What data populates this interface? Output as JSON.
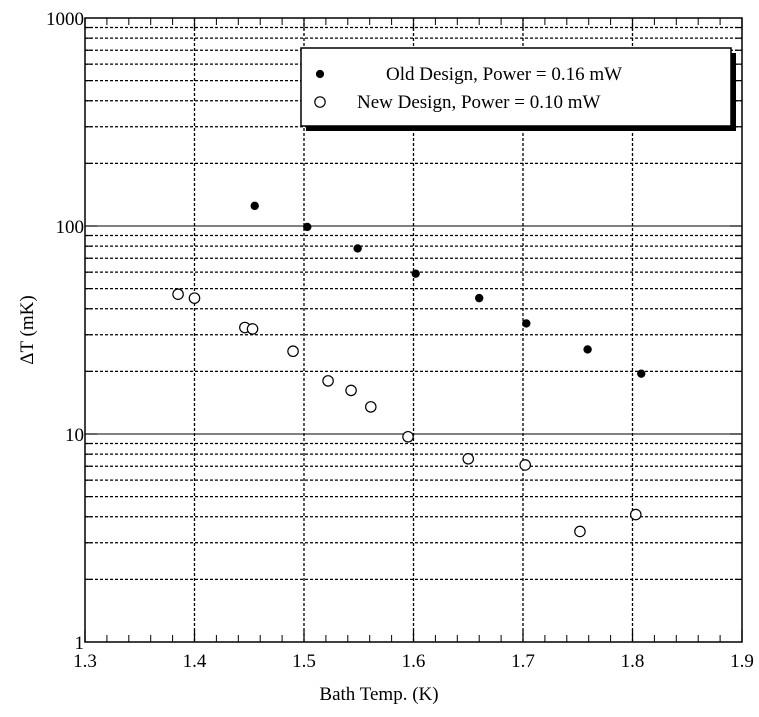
{
  "chart_data": {
    "type": "scatter",
    "xlabel": "Bath Temp. (K)",
    "ylabel": "ΔT (mK)",
    "xlim": [
      1.3,
      1.9
    ],
    "ylim": [
      1,
      1000
    ],
    "yscale": "log",
    "grid": true,
    "legend_position": "top-right",
    "x_ticks": [
      "1.3",
      "1.4",
      "1.5",
      "1.6",
      "1.7",
      "1.8",
      "1.9"
    ],
    "y_ticks": [
      "1",
      "10",
      "100",
      "1000"
    ],
    "series": [
      {
        "name": "Old Design, Power = 0.16 mW",
        "marker": "filled-circle",
        "x": [
          1.455,
          1.503,
          1.549,
          1.602,
          1.66,
          1.703,
          1.759,
          1.808
        ],
        "y": [
          125,
          99,
          78,
          59,
          45,
          34,
          25.5,
          19.5
        ]
      },
      {
        "name": "New Design, Power = 0.10 mW",
        "marker": "open-circle",
        "x": [
          1.385,
          1.4,
          1.446,
          1.453,
          1.49,
          1.522,
          1.543,
          1.561,
          1.595,
          1.65,
          1.702,
          1.752,
          1.803
        ],
        "y": [
          47,
          45,
          32.5,
          32,
          25,
          18,
          16.2,
          13.5,
          9.7,
          7.6,
          7.1,
          3.4,
          4.1
        ]
      }
    ]
  }
}
